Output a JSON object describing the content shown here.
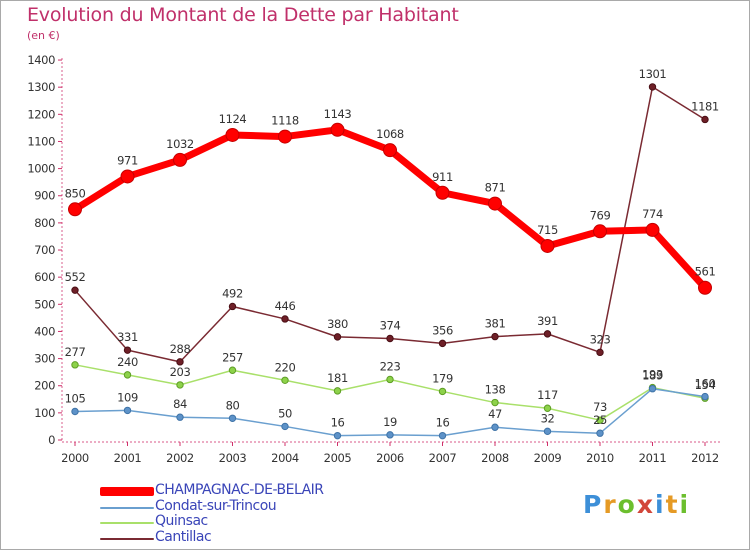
{
  "title": "Evolution du Montant de la Dette par Habitant",
  "unit_label": "(en €)",
  "logo": "Proxiti",
  "chart_data": {
    "type": "line",
    "title": "Evolution du Montant de la Dette par Habitant",
    "ylabel": "(en €)",
    "xlabel": "",
    "categories": [
      "2000",
      "2001",
      "2002",
      "2003",
      "2004",
      "2005",
      "2006",
      "2007",
      "2008",
      "2009",
      "2010",
      "2011",
      "2012"
    ],
    "ylim": [
      0,
      1400
    ],
    "yticks": [
      0,
      100,
      200,
      300,
      400,
      500,
      600,
      700,
      800,
      900,
      1000,
      1100,
      1200,
      1300,
      1400
    ],
    "grid": false,
    "legend_position": "bottom-left",
    "series": [
      {
        "name": "CHAMPAGNAC-DE-BELAIR",
        "color": "#ff0000",
        "values": [
          850,
          971,
          1032,
          1124,
          1118,
          1143,
          1068,
          911,
          871,
          715,
          769,
          774,
          561
        ]
      },
      {
        "name": "Condat-sur-Trincou",
        "color": "#6a9fcf",
        "values": [
          105,
          109,
          84,
          80,
          50,
          16,
          19,
          16,
          47,
          32,
          25,
          189,
          160
        ]
      },
      {
        "name": "Quinsac",
        "color": "#a9e06a",
        "values": [
          277,
          240,
          203,
          257,
          220,
          181,
          223,
          179,
          138,
          117,
          73,
          193,
          154
        ]
      },
      {
        "name": "Cantillac",
        "color": "#7a2a32",
        "values": [
          552,
          331,
          288,
          492,
          446,
          380,
          374,
          356,
          381,
          391,
          323,
          1301,
          1181
        ]
      }
    ]
  }
}
